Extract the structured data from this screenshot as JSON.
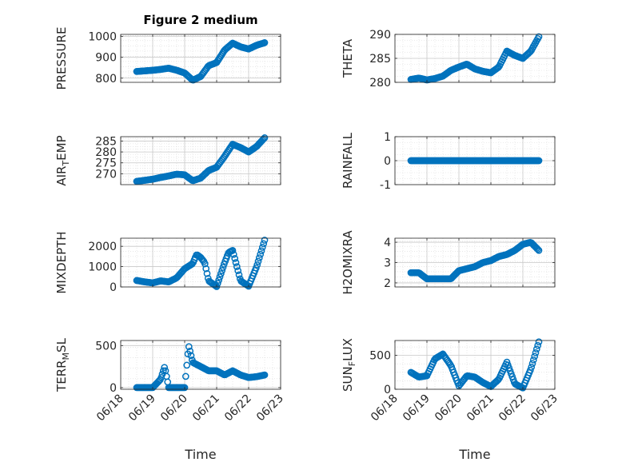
{
  "title": "Figure 2 medium",
  "xlabel": "Time",
  "colors": {
    "marker": "#0072BD",
    "axis": "#262626",
    "grid": "#d9d9d9"
  },
  "chart_data": [
    {
      "name": "PRESSURE",
      "type": "scatter",
      "ylabel": "PRESSURE",
      "ylim": [
        780,
        1010
      ],
      "yticks": [
        800,
        900,
        1000
      ],
      "x": [
        "06/18 12:00",
        "06/18 18:00",
        "06/19 00:00",
        "06/19 06:00",
        "06/19 12:00",
        "06/19 18:00",
        "06/20 00:00",
        "06/20 06:00",
        "06/20 12:00",
        "06/20 18:00",
        "06/21 00:00",
        "06/21 06:00",
        "06/21 12:00",
        "06/21 18:00",
        "06/22 00:00",
        "06/22 06:00",
        "06/22 12:00"
      ],
      "y": [
        832,
        835,
        838,
        842,
        848,
        838,
        825,
        790,
        808,
        860,
        875,
        935,
        968,
        950,
        940,
        958,
        970
      ]
    },
    {
      "name": "THETA",
      "type": "scatter",
      "ylabel": "THETA",
      "ylim": [
        280,
        290
      ],
      "yticks": [
        280,
        285,
        290
      ],
      "x": [
        "06/18 12:00",
        "06/18 18:00",
        "06/19 00:00",
        "06/19 06:00",
        "06/19 12:00",
        "06/19 18:00",
        "06/20 00:00",
        "06/20 06:00",
        "06/20 12:00",
        "06/20 18:00",
        "06/21 00:00",
        "06/21 06:00",
        "06/21 12:00",
        "06/21 18:00",
        "06/22 00:00",
        "06/22 06:00",
        "06/22 12:00"
      ],
      "y": [
        280.6,
        280.9,
        280.5,
        280.8,
        281.3,
        282.5,
        283.2,
        283.8,
        282.8,
        282.3,
        282.0,
        283.2,
        286.5,
        285.6,
        285.0,
        286.5,
        289.5
      ]
    },
    {
      "name": "AIR_TEMP",
      "type": "scatter",
      "ylabel": "AIR_TEMP",
      "ylim": [
        265,
        287
      ],
      "yticks": [
        270,
        275,
        280,
        285
      ],
      "x": [
        "06/18 12:00",
        "06/18 18:00",
        "06/19 00:00",
        "06/19 06:00",
        "06/19 12:00",
        "06/19 18:00",
        "06/20 00:00",
        "06/20 06:00",
        "06/20 12:00",
        "06/20 18:00",
        "06/21 00:00",
        "06/21 06:00",
        "06/21 12:00",
        "06/21 18:00",
        "06/22 00:00",
        "06/22 06:00",
        "06/22 12:00"
      ],
      "y": [
        266.5,
        267.0,
        267.5,
        268.3,
        269.0,
        269.8,
        269.5,
        266.8,
        268.0,
        271.5,
        273.0,
        278.0,
        283.5,
        282.0,
        280.0,
        282.5,
        286.5
      ]
    },
    {
      "name": "RAINFALL",
      "type": "scatter",
      "ylabel": "RAINFALL",
      "ylim": [
        -1,
        1
      ],
      "yticks": [
        -1,
        0,
        1
      ],
      "x": [
        "06/18 12:00",
        "06/19 00:00",
        "06/19 12:00",
        "06/20 00:00",
        "06/20 12:00",
        "06/21 00:00",
        "06/21 12:00",
        "06/22 00:00",
        "06/22 12:00"
      ],
      "y": [
        0,
        0,
        0,
        0,
        0,
        0,
        0,
        0,
        0
      ]
    },
    {
      "name": "MIXDEPTH",
      "type": "scatter",
      "ylabel": "MIXDEPTH",
      "ylim": [
        0,
        2400
      ],
      "yticks": [
        0,
        1000,
        2000
      ],
      "x": [
        "06/18 12:00",
        "06/18 18:00",
        "06/19 00:00",
        "06/19 06:00",
        "06/19 12:00",
        "06/19 18:00",
        "06/20 00:00",
        "06/20 06:00",
        "06/20 09:00",
        "06/20 12:00",
        "06/20 15:00",
        "06/20 18:00",
        "06/21 00:00",
        "06/21 06:00",
        "06/21 09:00",
        "06/21 12:00",
        "06/21 18:00",
        "06/22 00:00",
        "06/22 06:00",
        "06/22 12:00"
      ],
      "y": [
        320,
        250,
        200,
        300,
        250,
        450,
        900,
        1150,
        1600,
        1450,
        1200,
        300,
        20,
        1200,
        1700,
        1800,
        300,
        40,
        1000,
        2300
      ]
    },
    {
      "name": "H2OMIXRA",
      "type": "scatter",
      "ylabel": "H2OMIXRA",
      "ylim": [
        1.8,
        4.2
      ],
      "yticks": [
        2,
        3,
        4
      ],
      "x": [
        "06/18 12:00",
        "06/18 18:00",
        "06/19 00:00",
        "06/19 06:00",
        "06/19 12:00",
        "06/19 18:00",
        "06/20 00:00",
        "06/20 06:00",
        "06/20 12:00",
        "06/20 18:00",
        "06/21 00:00",
        "06/21 06:00",
        "06/21 12:00",
        "06/21 18:00",
        "06/22 00:00",
        "06/22 06:00",
        "06/22 12:00"
      ],
      "y": [
        2.5,
        2.5,
        2.2,
        2.2,
        2.2,
        2.2,
        2.6,
        2.7,
        2.8,
        3.0,
        3.1,
        3.3,
        3.4,
        3.6,
        3.9,
        4.0,
        3.6
      ]
    },
    {
      "name": "TERR_MSL",
      "type": "scatter",
      "ylabel": "TERR_MSL",
      "ylim": [
        -20,
        560
      ],
      "yticks": [
        0,
        500
      ],
      "x": [
        "06/18 12:00",
        "06/18 18:00",
        "06/19 00:00",
        "06/19 06:00",
        "06/19 09:00",
        "06/19 12:00",
        "06/19 18:00",
        "06/20 00:00",
        "06/20 03:00",
        "06/20 06:00",
        "06/20 12:00",
        "06/20 18:00",
        "06/21 00:00",
        "06/21 06:00",
        "06/21 12:00",
        "06/21 18:00",
        "06/22 00:00",
        "06/22 06:00",
        "06/22 12:00"
      ],
      "y": [
        0,
        0,
        0,
        100,
        250,
        0,
        0,
        0,
        500,
        300,
        250,
        200,
        200,
        150,
        200,
        150,
        120,
        130,
        150
      ]
    },
    {
      "name": "SUN_FLUX",
      "type": "scatter",
      "ylabel": "SUN_FLUX",
      "ylim": [
        0,
        720
      ],
      "yticks": [
        0,
        500
      ],
      "x": [
        "06/18 12:00",
        "06/18 18:00",
        "06/19 00:00",
        "06/19 06:00",
        "06/19 12:00",
        "06/19 18:00",
        "06/20 00:00",
        "06/20 06:00",
        "06/20 12:00",
        "06/20 18:00",
        "06/21 00:00",
        "06/21 06:00",
        "06/21 12:00",
        "06/21 18:00",
        "06/22 00:00",
        "06/22 06:00",
        "06/22 12:00"
      ],
      "y": [
        250,
        180,
        200,
        450,
        520,
        350,
        50,
        200,
        180,
        100,
        40,
        150,
        400,
        80,
        20,
        300,
        700
      ]
    }
  ]
}
